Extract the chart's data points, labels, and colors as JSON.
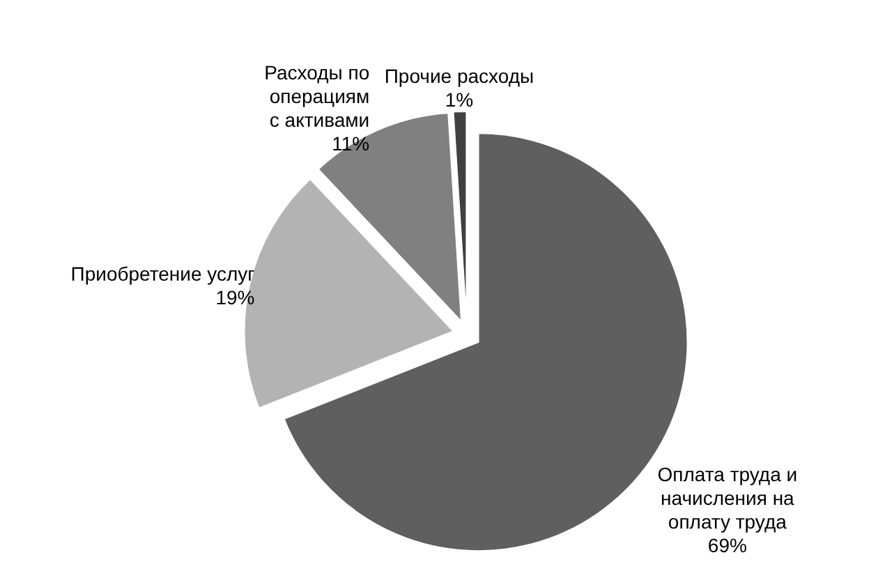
{
  "chart_data": {
    "type": "pie",
    "categories": [
      "Оплата труда и\nначисления на\nоплату труда",
      "Приобретение услуг",
      "Расходы по\nоперациям\nс активами",
      "Прочие расходы"
    ],
    "values": [
      69,
      19,
      11,
      1
    ],
    "value_labels": [
      "69%",
      "19%",
      "11%",
      "1%"
    ],
    "colors": [
      "#5f5f5f",
      "#b3b3b3",
      "#808080",
      "#404040"
    ]
  }
}
